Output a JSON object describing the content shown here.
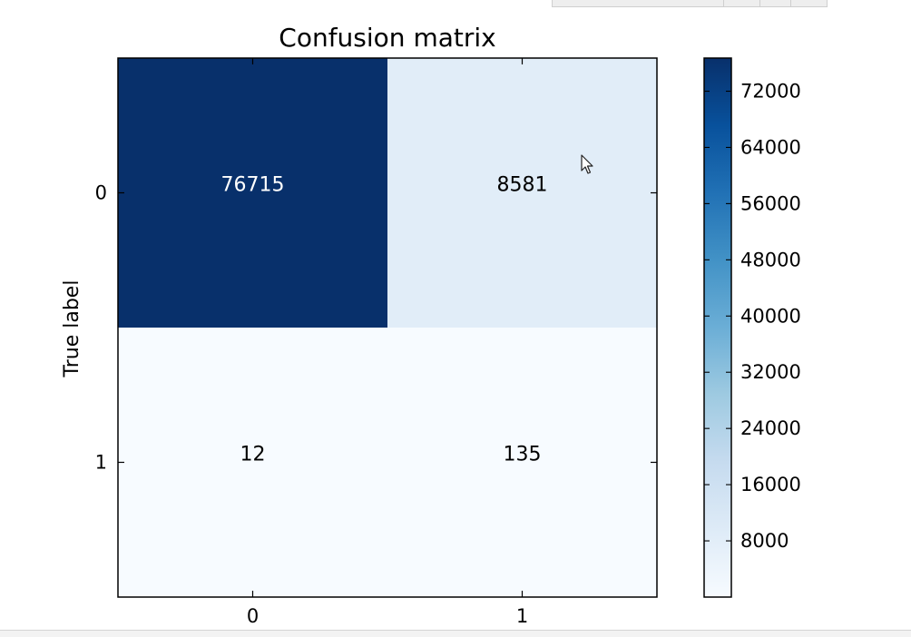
{
  "chart_data": {
    "type": "heatmap",
    "title": "Confusion matrix",
    "xlabel": "",
    "ylabel": "True label",
    "x_tick_labels": [
      "0",
      "1"
    ],
    "y_tick_labels": [
      "0",
      "1"
    ],
    "matrix": [
      [
        76715,
        8581
      ],
      [
        12,
        135
      ]
    ],
    "colormap": "Blues",
    "colorbar": {
      "min": 0,
      "max": 76715,
      "ticks": [
        "8000",
        "16000",
        "24000",
        "32000",
        "40000",
        "48000",
        "56000",
        "64000",
        "72000"
      ]
    },
    "colors": {
      "low": "#f7fbff",
      "high": "#08306b",
      "text_on_dark": "#ffffff",
      "text_on_light": "#000000"
    }
  },
  "icons": {
    "cursor": "mouse-pointer-icon"
  }
}
